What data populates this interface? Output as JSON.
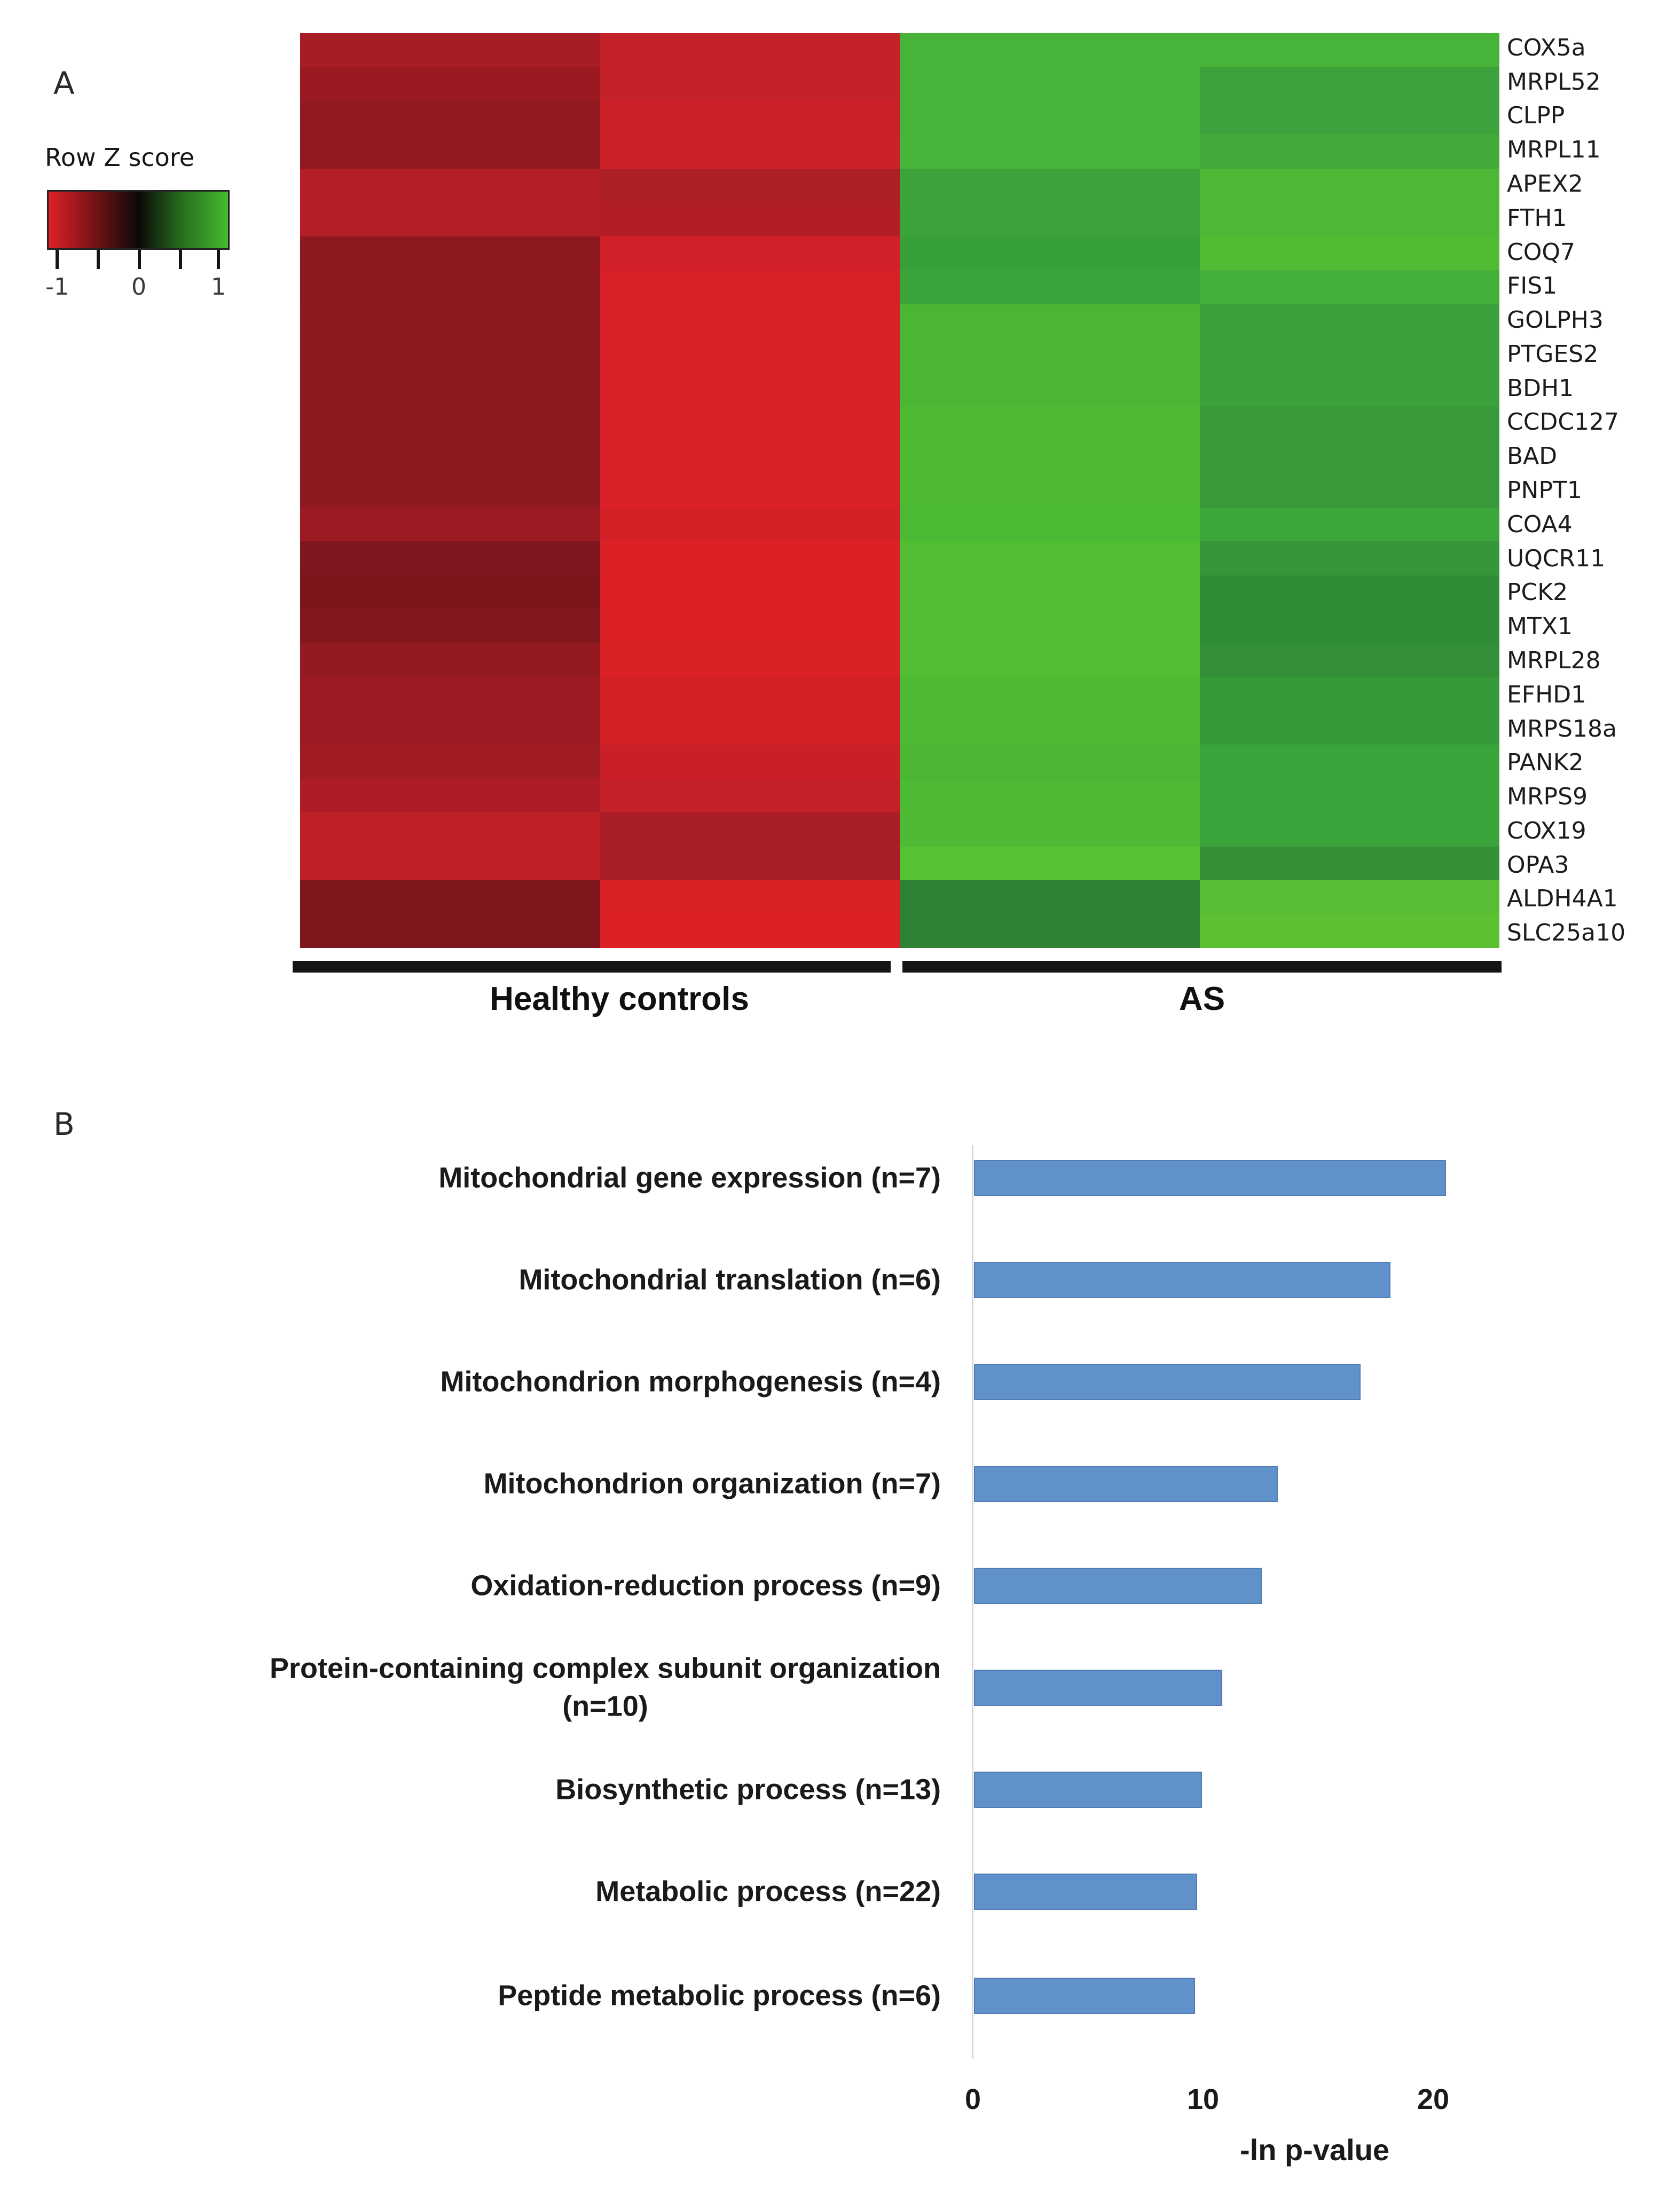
{
  "panel_a": {
    "label": "A"
  },
  "panel_b": {
    "label": "B"
  },
  "chart_data": [
    {
      "type": "heatmap",
      "panel": "A",
      "colorbar": {
        "title": "Row Z score",
        "tick_labels": [
          "-1",
          "0",
          "1"
        ],
        "gradient": [
          "#e02127",
          "#6b1114",
          "#0d0808",
          "#256e1d",
          "#47bb2e"
        ]
      },
      "rows": [
        "COX5a",
        "MRPL52",
        "CLPP",
        "MRPL11",
        "APEX2",
        "FTH1",
        "COQ7",
        "FIS1",
        "GOLPH3",
        "PTGES2",
        "BDH1",
        "CCDC127",
        "BAD",
        "PNPT1",
        "COA4",
        "UQCR11",
        "PCK2",
        "MTX1",
        "MRPL28",
        "EFHD1",
        "MRPS18a",
        "PANK2",
        "MRPS9",
        "COX19",
        "OPA3",
        "ALDH4A1",
        "SLC25a10"
      ],
      "column_groups": [
        {
          "label": "Healthy controls",
          "columns": 2
        },
        {
          "label": "AS",
          "columns": 2
        }
      ],
      "cell_colors": [
        [
          "#a81d24",
          "#c52129",
          "#47b338",
          "#47b338"
        ],
        [
          "#9b1a22",
          "#c52129",
          "#47b338",
          "#3ca23b"
        ],
        [
          "#911921",
          "#ca2129",
          "#47b338",
          "#3ca23b"
        ],
        [
          "#911921",
          "#cd2129",
          "#47b338",
          "#41aa39"
        ],
        [
          "#b41f27",
          "#ae1e25",
          "#3ba33a",
          "#4eb836"
        ],
        [
          "#b41f27",
          "#b31e26",
          "#3ba33a",
          "#4eb836"
        ],
        [
          "#8d181f",
          "#d12028",
          "#38a03a",
          "#52bb34"
        ],
        [
          "#8d181f",
          "#d82127",
          "#3aa43a",
          "#44af38"
        ],
        [
          "#8d1a21",
          "#d92127",
          "#4ab634",
          "#3aa13b"
        ],
        [
          "#8d1a21",
          "#d92127",
          "#4ab634",
          "#3aa13b"
        ],
        [
          "#8d1a21",
          "#d92127",
          "#4ab634",
          "#3aa13b"
        ],
        [
          "#8d1a21",
          "#d92127",
          "#4eba33",
          "#389a3a"
        ],
        [
          "#8d1a21",
          "#d92127",
          "#4eba33",
          "#389a3a"
        ],
        [
          "#8d1a21",
          "#d92127",
          "#4eba33",
          "#389a3a"
        ],
        [
          "#9c1b23",
          "#d42027",
          "#4cb934",
          "#3ca73b"
        ],
        [
          "#801620",
          "#dc2126",
          "#50bd33",
          "#36963a"
        ],
        [
          "#7a151c",
          "#dc2126",
          "#50bd33",
          "#308d37"
        ],
        [
          "#83171e",
          "#dc2126",
          "#50bd33",
          "#308d37"
        ],
        [
          "#941a22",
          "#d92126",
          "#50bd33",
          "#339038"
        ],
        [
          "#9c1b23",
          "#d42027",
          "#4eba33",
          "#36993a"
        ],
        [
          "#9c1b23",
          "#d42027",
          "#4eba33",
          "#36993a"
        ],
        [
          "#a11b23",
          "#c92028",
          "#4bb634",
          "#3aa43b"
        ],
        [
          "#ae1d25",
          "#c42028",
          "#4eb934",
          "#3aa43b"
        ],
        [
          "#bf2027",
          "#a91d24",
          "#4eb934",
          "#3aa43b"
        ],
        [
          "#bf2027",
          "#a91d24",
          "#55c133",
          "#349138"
        ],
        [
          "#7d161d",
          "#d92126",
          "#2e8233",
          "#57bd32"
        ],
        [
          "#7d161d",
          "#dc2126",
          "#2e8233",
          "#5cc131"
        ]
      ]
    },
    {
      "type": "bar",
      "panel": "B",
      "orientation": "horizontal",
      "categories": [
        "Mitochondrial gene expression (n=7)",
        "Mitochondrial translation (n=6)",
        "Mitochondrion morphogenesis (n=4)",
        "Mitochondrion organization (n=7)",
        "Oxidation-reduction process (n=9)",
        "Protein-containing complex subunit organization\n(n=10)",
        "Biosynthetic process (n=13)",
        "Metabolic process (n=22)",
        "Peptide metabolic process (n=6)"
      ],
      "values": [
        20.5,
        18.1,
        16.8,
        13.2,
        12.5,
        10.8,
        9.9,
        9.7,
        9.6
      ],
      "xlabel": "-ln p-value",
      "x_ticks": [
        0,
        10,
        20
      ],
      "xlim": [
        0,
        25
      ],
      "bar_color": "#6191cb",
      "grid": false,
      "legend": null
    }
  ]
}
